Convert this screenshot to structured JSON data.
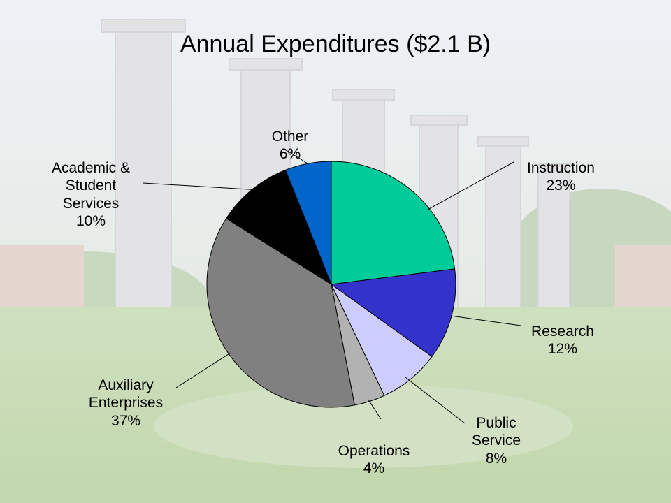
{
  "chart_data": {
    "type": "pie",
    "title": "Annual Expenditures ($2.1 B)",
    "slices": [
      {
        "label": "Instruction",
        "value": 23,
        "value_label": "23%",
        "color": "#00CC99"
      },
      {
        "label": "Research",
        "value": 12,
        "value_label": "12%",
        "color": "#3333CC"
      },
      {
        "label": "Public\nService",
        "value": 8,
        "value_label": "8%",
        "color": "#CCCCFF"
      },
      {
        "label": "Operations",
        "value": 4,
        "value_label": "4%",
        "color": "#B2B2B2"
      },
      {
        "label": "Auxiliary\nEnterprises",
        "value": 37,
        "value_label": "37%",
        "color": "#808080"
      },
      {
        "label": "Academic &\nStudent\nServices",
        "value": 10,
        "value_label": "10%",
        "color": "#000000"
      },
      {
        "label": "Other",
        "value": 6,
        "value_label": "6%",
        "color": "#0066CC"
      }
    ],
    "start": "12 o'clock",
    "direction": "clockwise",
    "legend": "none",
    "slice_border": "#000000"
  }
}
